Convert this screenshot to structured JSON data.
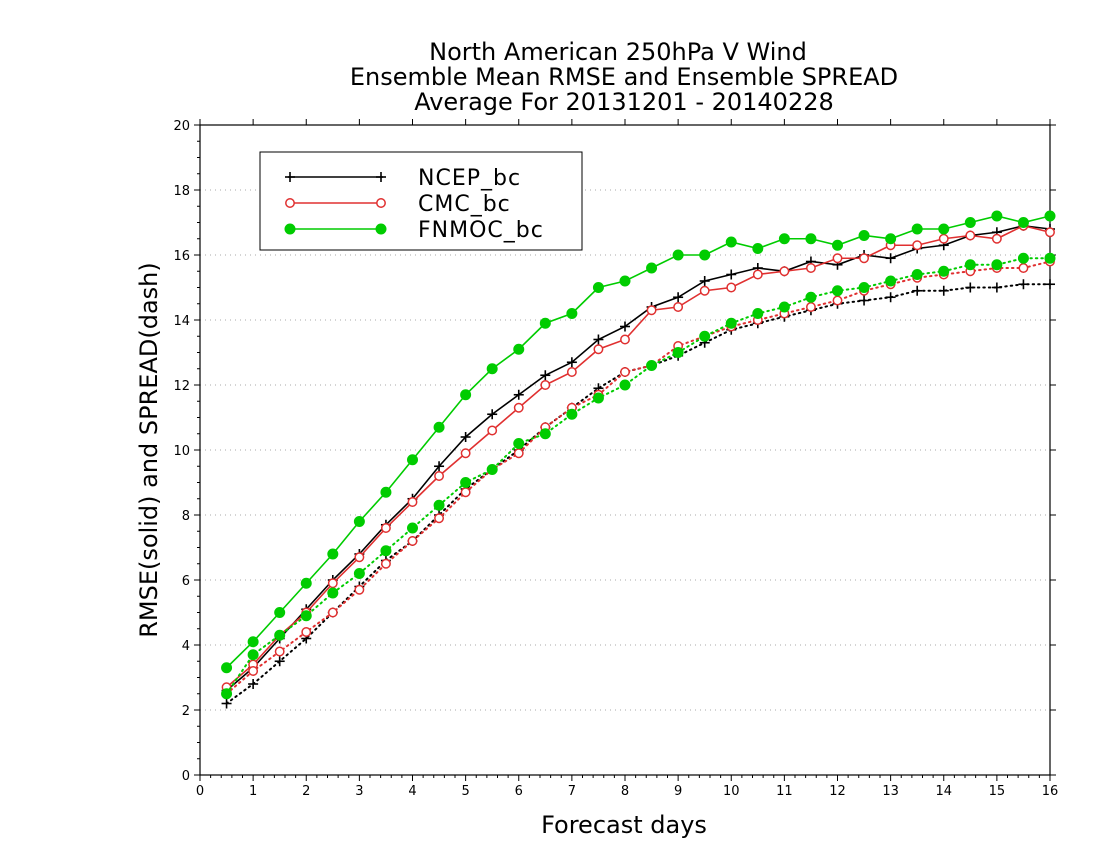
{
  "chart_data": {
    "type": "line",
    "title": [
      "North American 250hPa V Wind",
      "Ensemble Mean RMSE and Ensemble SPREAD",
      "Average For 20131201 - 20140228"
    ],
    "xlabel": "Forecast days",
    "ylabel": "RMSE(solid) and SPREAD(dash)",
    "xlim": [
      0,
      16
    ],
    "ylim": [
      0,
      20
    ],
    "xticks": [
      "0",
      "1",
      "2",
      "3",
      "4",
      "5",
      "6",
      "7",
      "8",
      "9",
      "10",
      "11",
      "12",
      "13",
      "14",
      "15",
      "16"
    ],
    "yticks": [
      "0",
      "2",
      "4",
      "6",
      "8",
      "10",
      "12",
      "14",
      "16",
      "18",
      "20"
    ],
    "grid": "horizontal dotted",
    "legend_position": "top-left",
    "x": [
      0.5,
      1,
      1.5,
      2,
      2.5,
      3,
      3.5,
      4,
      4.5,
      5,
      5.5,
      6,
      6.5,
      7,
      7.5,
      8,
      8.5,
      9,
      9.5,
      10,
      10.5,
      11,
      11.5,
      12,
      12.5,
      13,
      13.5,
      14,
      14.5,
      15,
      15.5,
      16
    ],
    "series": [
      {
        "name": "NCEP_bc",
        "style": "solid",
        "marker": "plus",
        "color": "#000000",
        "values": [
          2.6,
          3.3,
          4.2,
          5.1,
          6.0,
          6.8,
          7.7,
          8.5,
          9.5,
          10.4,
          11.1,
          11.7,
          12.3,
          12.7,
          13.4,
          13.8,
          14.4,
          14.7,
          15.2,
          15.4,
          15.6,
          15.5,
          15.8,
          15.7,
          16.0,
          15.9,
          16.2,
          16.3,
          16.6,
          16.7,
          16.9,
          16.8
        ]
      },
      {
        "name": "CMC_bc",
        "style": "solid",
        "marker": "open-circle",
        "color": "#e03030",
        "values": [
          2.7,
          3.4,
          4.3,
          5.0,
          5.9,
          6.7,
          7.6,
          8.4,
          9.2,
          9.9,
          10.6,
          11.3,
          12.0,
          12.4,
          13.1,
          13.4,
          14.3,
          14.4,
          14.9,
          15.0,
          15.4,
          15.5,
          15.6,
          15.9,
          15.9,
          16.3,
          16.3,
          16.5,
          16.6,
          16.5,
          16.9,
          16.7
        ]
      },
      {
        "name": "FNMOC_bc",
        "style": "solid",
        "marker": "filled-circle",
        "color": "#00cc00",
        "values": [
          3.3,
          4.1,
          5.0,
          5.9,
          6.8,
          7.8,
          8.7,
          9.7,
          10.7,
          11.7,
          12.5,
          13.1,
          13.9,
          14.2,
          15.0,
          15.2,
          15.6,
          16.0,
          16.0,
          16.4,
          16.2,
          16.5,
          16.5,
          16.3,
          16.6,
          16.5,
          16.8,
          16.8,
          17.0,
          17.2,
          17.0,
          17.2
        ]
      },
      {
        "name": "NCEP_bc",
        "style": "dotted",
        "marker": "plus",
        "color": "#000000",
        "values": [
          2.2,
          2.8,
          3.5,
          4.2,
          5.0,
          5.8,
          6.6,
          7.2,
          8.0,
          8.8,
          9.4,
          10.0,
          10.7,
          11.3,
          11.9,
          12.4,
          12.6,
          12.9,
          13.3,
          13.7,
          13.9,
          14.1,
          14.3,
          14.5,
          14.6,
          14.7,
          14.9,
          14.9,
          15.0,
          15.0,
          15.1,
          15.1
        ]
      },
      {
        "name": "CMC_bc",
        "style": "dotted",
        "marker": "open-circle",
        "color": "#e03030",
        "values": [
          2.5,
          3.2,
          3.8,
          4.4,
          5.0,
          5.7,
          6.5,
          7.2,
          7.9,
          8.7,
          9.4,
          9.9,
          10.7,
          11.3,
          11.7,
          12.4,
          12.6,
          13.2,
          13.5,
          13.8,
          14.0,
          14.2,
          14.4,
          14.6,
          14.9,
          15.1,
          15.3,
          15.4,
          15.5,
          15.6,
          15.6,
          15.8
        ]
      },
      {
        "name": "FNMOC_bc",
        "style": "dotted",
        "marker": "filled-circle",
        "color": "#00cc00",
        "values": [
          2.5,
          3.7,
          4.3,
          4.9,
          5.6,
          6.2,
          6.9,
          7.6,
          8.3,
          9.0,
          9.4,
          10.2,
          10.5,
          11.1,
          11.6,
          12.0,
          12.6,
          13.0,
          13.5,
          13.9,
          14.2,
          14.4,
          14.7,
          14.9,
          15.0,
          15.2,
          15.4,
          15.5,
          15.7,
          15.7,
          15.9,
          15.9
        ]
      }
    ],
    "legend": [
      {
        "name": "NCEP_bc",
        "marker": "plus",
        "color": "#000000"
      },
      {
        "name": "CMC_bc",
        "marker": "open-circle",
        "color": "#e03030"
      },
      {
        "name": "FNMOC_bc",
        "marker": "filled-circle",
        "color": "#00cc00"
      }
    ]
  }
}
